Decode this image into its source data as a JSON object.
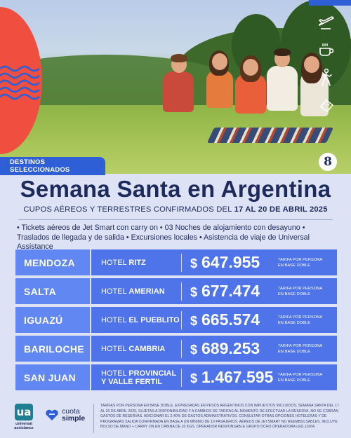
{
  "colors": {
    "brand_blue": "#2f5fd6",
    "row_blue": "#4f74ea",
    "city_blue": "#6187f2",
    "accent_orange": "#f04e3e",
    "navy_text": "#1d2a5c",
    "background": "#dde2f5"
  },
  "hero": {
    "icons": [
      "airplane-icon",
      "coffee-cup-icon",
      "hiking-person-icon",
      "ticket-icon"
    ],
    "logo_glyph": "8",
    "tag": "DESTINOS SELECCIONADOS"
  },
  "title": "Semana Santa en Argentina",
  "subtitle": {
    "prefix": "CUPOS AÉREOS Y TERRESTRES CONFIRMADOS DEL ",
    "dates": "17 AL 20 DE ABRIL 2025"
  },
  "features": "• Tickets aéreos de Jet Smart con carry on • 03 Noches de alojamiento con desayuno • Traslados de llegada y de salida • Excursiones locales • Asistencia de viaje de Universal Assistance",
  "packages": [
    {
      "city": "MENDOZA",
      "hotel_prefix": "HOTEL",
      "hotel_name": "RITZ",
      "currency": "$",
      "price": "647.955",
      "note": "TARIFA POR PERSONA EN BASE DOBLE"
    },
    {
      "city": "SALTA",
      "hotel_prefix": "HOTEL",
      "hotel_name": "AMERIAN",
      "currency": "$",
      "price": "677.474",
      "note": "TARIFA POR PERSONA EN BASE DOBLE"
    },
    {
      "city": "IGUAZÚ",
      "hotel_prefix": "HOTEL",
      "hotel_name": "EL PUEBLITO",
      "currency": "$",
      "price": "665.574",
      "note": "TARIFA POR PERSONA EN BASE DOBLE"
    },
    {
      "city": "BARILOCHE",
      "hotel_prefix": "HOTEL",
      "hotel_name": "CAMBRIA",
      "currency": "$",
      "price": "689.253",
      "note": "TARIFA POR PERSONA EN BASE DOBLE"
    },
    {
      "city": "SAN JUAN",
      "hotel_prefix": "HOTEL",
      "hotel_name": "PROVINCIAL Y VALLE FERTIL",
      "currency": "$",
      "price": "1.467.595",
      "note": "TARIFA POR PERSONA EN BASE DOBLE"
    }
  ],
  "footer": {
    "ua_mark": "ua",
    "ua_text": "universal assistance",
    "cs_line1": "cuota",
    "cs_line2": "simple",
    "disclaimer": "TARIFAS POR PERSONA EN BASE DOBLE, EXPRESADAS EN PESOS ARGENTINOS CON IMPUESTOS INCLUIDOS, SEMANA SANTA DEL 17 AL 20 DE ABRIL 2025, SUJETAS A DISPONIBILIDAD Y A CAMBIOS DE TARIFAS AL MOMENTO DE EFECTUAR LA RESERVA, NO SE COBRAN GASTOS DE RESERVAS. ADICIONAR EL 2,40% DE GASTOS ADMINISTRATIVOS. CONSULTAR OTRAS OPCIONES HOTELERAS Y DE PROGRAMAS SALIDA CONFIRMADA EN BASE A UN MÍNIMO DE 10 PASAJEROS. AÉREOS DE JETSMART NO REEMBOLSABLES. INCLUYE BOLSO DE MANO + CARRY ON EN CABINA DE 10 KGS. OPERADOR RESPONSABLE GRUPO OCHO OPERADORA LEG.11604."
  }
}
